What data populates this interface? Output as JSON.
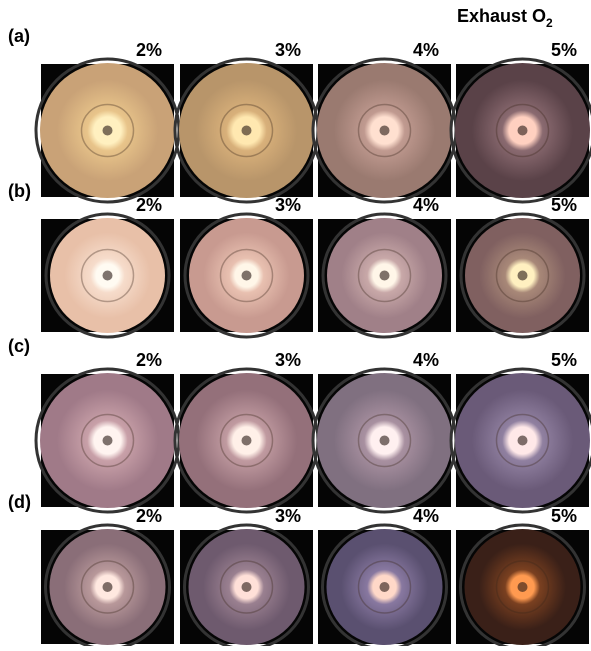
{
  "header": {
    "text": "Exhaust O",
    "subscript": "2"
  },
  "rows": [
    {
      "label": "(a)",
      "columns": [
        "2%",
        "3%",
        "4%",
        "5%"
      ]
    },
    {
      "label": "(b)",
      "columns": [
        "2%",
        "3%",
        "4%",
        "5%"
      ]
    },
    {
      "label": "(c)",
      "columns": [
        "2%",
        "3%",
        "4%",
        "5%"
      ]
    },
    {
      "label": "(d)",
      "columns": [
        "2%",
        "3%",
        "4%",
        "5%"
      ]
    }
  ]
}
